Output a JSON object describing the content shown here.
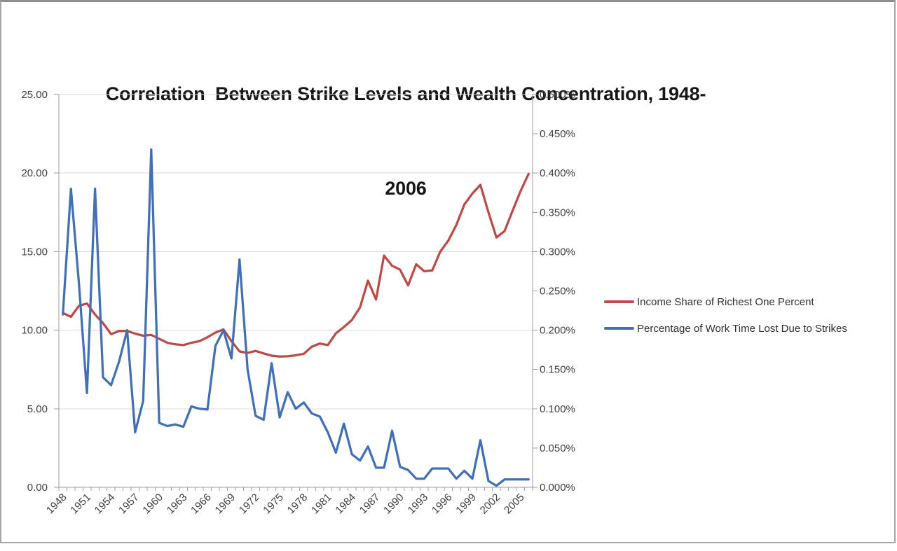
{
  "title": {
    "line1": "Correlation  Between Strike Levels and Wealth Concentration, 1948-",
    "line2": "2006"
  },
  "left_axis": {
    "labels": [
      "25.00",
      "20.00",
      "15.00",
      "10.00",
      "5.00",
      "0.00"
    ],
    "values": [
      25,
      20,
      15,
      10,
      5,
      0
    ]
  },
  "right_axis": {
    "labels": [
      "0.500%",
      "0.450%",
      "0.400%",
      "0.350%",
      "0.300%",
      "0.250%",
      "0.200%",
      "0.150%",
      "0.100%",
      "0.050%",
      "0.000%"
    ],
    "values": [
      0.5,
      0.45,
      0.4,
      0.35,
      0.3,
      0.25,
      0.2,
      0.15,
      0.1,
      0.05,
      0.0
    ]
  },
  "x_axis": {
    "labels": [
      "1948",
      "1951",
      "1954",
      "1957",
      "1960",
      "1963",
      "1966",
      "1969",
      "1972",
      "1975",
      "1978",
      "1981",
      "1984",
      "1987",
      "1990",
      "1993",
      "1996",
      "1999",
      "2002",
      "2005"
    ],
    "label_step_years": 3
  },
  "legend": {
    "entries": [
      {
        "label": "Income Share of Richest One Percent",
        "color": "#BE4A47"
      },
      {
        "label": "Percentage of Work Time Lost Due to Strikes",
        "color": "#4170B4"
      }
    ]
  },
  "colors": {
    "income_series": "#BE4A47",
    "strikes_series": "#4170B4",
    "gridline": "#D9D9D9",
    "axis_line": "#9E9E9E",
    "tick_text": "#3F3F3F"
  },
  "chart_data": {
    "type": "line",
    "title": "Correlation Between Strike Levels and Wealth Concentration, 1948-2006",
    "x": [
      1948,
      1949,
      1950,
      1951,
      1952,
      1953,
      1954,
      1955,
      1956,
      1957,
      1958,
      1959,
      1960,
      1961,
      1962,
      1963,
      1964,
      1965,
      1966,
      1967,
      1968,
      1969,
      1970,
      1971,
      1972,
      1973,
      1974,
      1975,
      1976,
      1977,
      1978,
      1979,
      1980,
      1981,
      1982,
      1983,
      1984,
      1985,
      1986,
      1987,
      1988,
      1989,
      1990,
      1991,
      1992,
      1993,
      1994,
      1995,
      1996,
      1997,
      1998,
      1999,
      2000,
      2001,
      2002,
      2003,
      2004,
      2005,
      2006
    ],
    "series": [
      {
        "name": "Income Share of Richest One Percent",
        "axis": "left",
        "color": "#BE4A47",
        "units": "percent (left axis scale 0-25)",
        "values": [
          11.1,
          10.85,
          11.55,
          11.7,
          11.0,
          10.45,
          9.75,
          9.95,
          9.95,
          9.78,
          9.65,
          9.7,
          9.45,
          9.2,
          9.1,
          9.05,
          9.2,
          9.3,
          9.55,
          9.85,
          10.05,
          9.3,
          8.65,
          8.55,
          8.68,
          8.52,
          8.38,
          8.32,
          8.34,
          8.4,
          8.5,
          8.95,
          9.15,
          9.05,
          9.8,
          10.2,
          10.65,
          11.45,
          13.15,
          11.95,
          14.75,
          14.1,
          13.85,
          12.85,
          14.2,
          13.75,
          13.8,
          15.0,
          15.7,
          16.7,
          18.0,
          18.7,
          19.25,
          17.5,
          15.9,
          16.3,
          17.6,
          18.85,
          19.95
        ]
      },
      {
        "name": "Percentage of Work Time Lost Due to Strikes",
        "axis": "right",
        "color": "#4170B4",
        "units": "percent of work time (right axis scale 0.000%-0.500%)",
        "values": [
          0.22,
          0.38,
          0.26,
          0.12,
          0.38,
          0.14,
          0.13,
          0.16,
          0.2,
          0.07,
          0.11,
          0.43,
          0.082,
          0.078,
          0.08,
          0.077,
          0.103,
          0.1,
          0.099,
          0.18,
          0.2,
          0.164,
          0.29,
          0.15,
          0.091,
          0.086,
          0.158,
          0.089,
          0.121,
          0.1,
          0.108,
          0.094,
          0.09,
          0.07,
          0.044,
          0.081,
          0.042,
          0.034,
          0.052,
          0.025,
          0.025,
          0.072,
          0.026,
          0.022,
          0.011,
          0.011,
          0.024,
          0.024,
          0.024,
          0.011,
          0.021,
          0.011,
          0.06,
          0.008,
          0.002,
          0.01,
          0.01,
          0.01,
          0.01
        ]
      }
    ],
    "left_ylim": [
      0,
      25
    ],
    "right_ylim": [
      0.0,
      0.5
    ],
    "grid": "horizontal major gridlines only",
    "legend_position": "right"
  }
}
